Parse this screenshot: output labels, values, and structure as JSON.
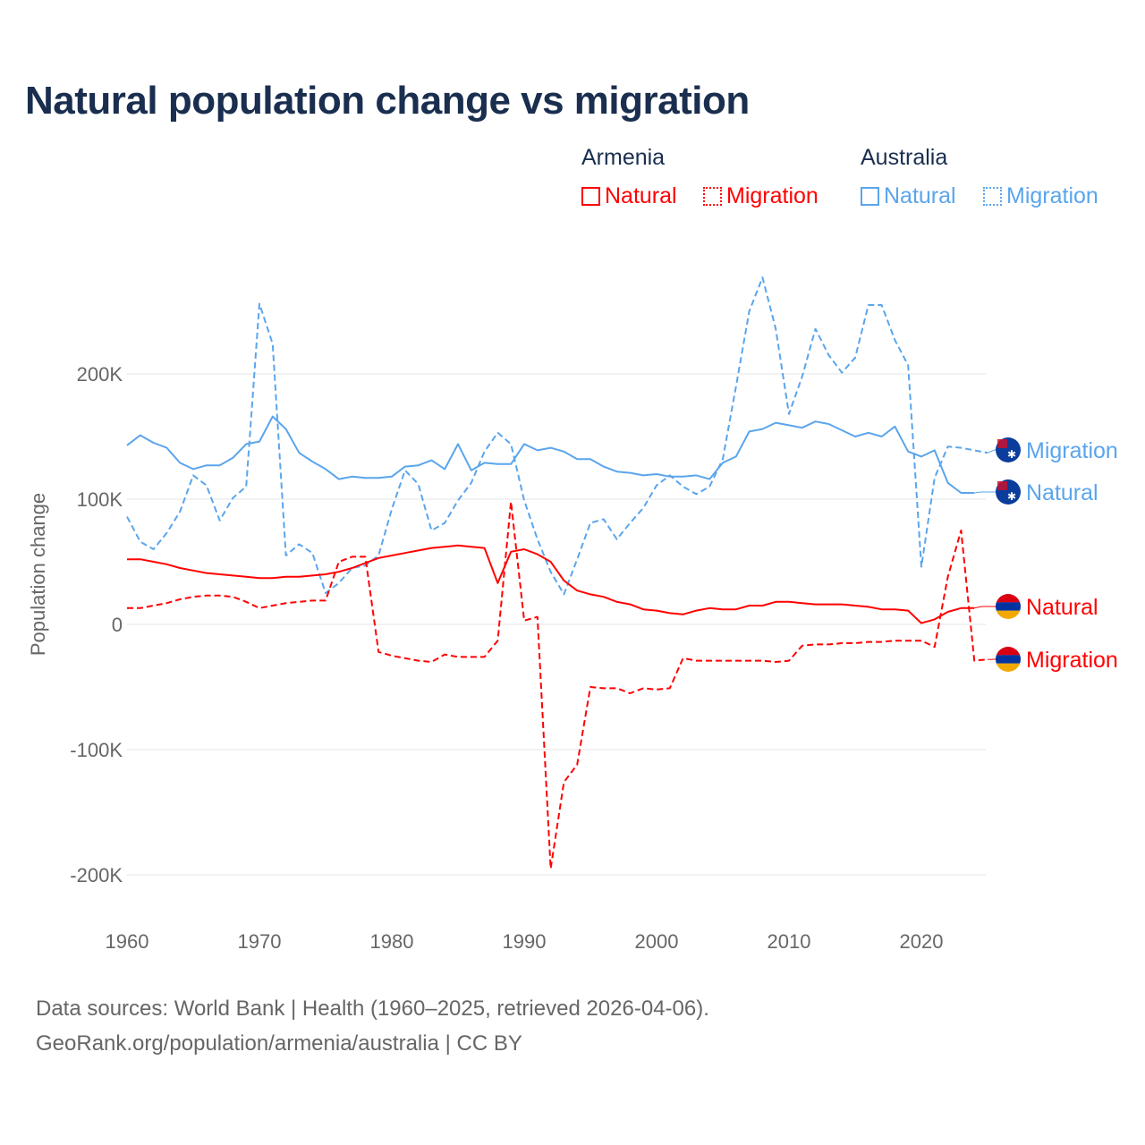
{
  "title": "Natural population change vs migration",
  "legend": {
    "groups": [
      {
        "name": "Armenia",
        "items": [
          "Natural",
          "Migration"
        ],
        "color": "#ff0000"
      },
      {
        "name": "Australia",
        "items": [
          "Natural",
          "Migration"
        ],
        "color": "#5aa5ec"
      }
    ]
  },
  "source": {
    "line1": "Data sources: World Bank | Health (1960–2025, retrieved 2026-04-06).",
    "line2": "GeoRank.org/population/armenia/australia | CC BY"
  },
  "chart_data": {
    "type": "line",
    "title": "Natural population change vs migration",
    "xlabel": "",
    "ylabel": "Population change",
    "xlim": [
      1960,
      2025
    ],
    "ylim": [
      -200000,
      280000
    ],
    "x_ticks": [
      1960,
      1970,
      1980,
      1990,
      2000,
      2010,
      2020
    ],
    "x_tick_labels": [
      "1960",
      "1970",
      "1980",
      "1990",
      "2000",
      "2010",
      "2020"
    ],
    "y_ticks": [
      -200000,
      -100000,
      0,
      100000,
      200000
    ],
    "y_tick_labels": [
      "-200K",
      "-100K",
      "0",
      "100K",
      "200K"
    ],
    "grid": true,
    "start_year": 1960,
    "series": [
      {
        "name": "Australia Migration",
        "end_label": "Migration",
        "color": "#5aa5ec",
        "dash": true,
        "flag": "australia",
        "values": [
          86,
          66,
          60,
          73,
          90,
          119,
          111,
          83,
          101,
          110,
          256,
          224,
          55,
          64,
          57,
          25,
          33,
          45,
          47,
          55,
          92,
          123,
          112,
          75,
          81,
          99,
          113,
          138,
          153,
          144,
          99,
          68,
          42,
          24,
          52,
          81,
          84,
          68,
          81,
          93,
          111,
          119,
          110,
          104,
          110,
          132,
          190,
          250,
          277,
          236,
          168,
          198,
          236,
          215,
          201,
          213,
          255,
          255,
          227,
          207,
          46,
          117,
          142,
          141,
          139,
          137
        ]
      },
      {
        "name": "Australia Natural",
        "end_label": "Natural",
        "color": "#5aa5ec",
        "dash": false,
        "flag": "australia",
        "values": [
          143,
          151,
          145,
          141,
          129,
          124,
          127,
          127,
          133,
          144,
          146,
          166,
          156,
          137,
          130,
          124,
          116,
          118,
          117,
          117,
          118,
          126,
          127,
          131,
          124,
          144,
          123,
          129,
          128,
          128,
          144,
          139,
          141,
          138,
          132,
          132,
          126,
          122,
          121,
          119,
          120,
          118,
          118,
          119,
          116,
          129,
          134,
          154,
          156,
          161,
          159,
          157,
          162,
          160,
          155,
          150,
          153,
          150,
          158,
          138,
          134,
          139,
          113,
          105,
          105
        ]
      },
      {
        "name": "Armenia Natural",
        "end_label": "Natural",
        "color": "#ff0000",
        "dash": false,
        "flag": "armenia",
        "values": [
          52,
          52,
          50,
          48,
          45,
          43,
          41,
          40,
          39,
          38,
          37,
          37,
          38,
          38,
          39,
          40,
          42,
          45,
          49,
          53,
          55,
          57,
          59,
          61,
          62,
          63,
          62,
          61,
          33,
          58,
          60,
          56,
          50,
          35,
          27,
          24,
          22,
          18,
          16,
          12,
          11,
          9,
          8,
          11,
          13,
          12,
          12,
          15,
          15,
          18,
          18,
          17,
          16,
          16,
          16,
          15,
          14,
          12,
          12,
          11,
          1,
          4,
          10,
          13,
          13
        ]
      },
      {
        "name": "Armenia Migration",
        "end_label": "Migration",
        "color": "#ff0000",
        "dash": true,
        "flag": "armenia",
        "values": [
          13,
          13,
          15,
          17,
          20,
          22,
          23,
          23,
          22,
          18,
          13,
          15,
          17,
          18,
          19,
          19,
          50,
          54,
          54,
          -22,
          -25,
          -27,
          -29,
          -30,
          -24,
          -26,
          -26,
          -26,
          -13,
          98,
          3,
          6,
          -195,
          -126,
          -112,
          -50,
          -51,
          -51,
          -55,
          -51,
          -52,
          -51,
          -27,
          -29,
          -29,
          -29,
          -29,
          -29,
          -29,
          -30,
          -29,
          -17,
          -16,
          -16,
          -15,
          -15,
          -14,
          -14,
          -13,
          -13,
          -13,
          -18,
          38,
          75,
          -29,
          -28
        ]
      }
    ],
    "value_unit": "thousands"
  }
}
